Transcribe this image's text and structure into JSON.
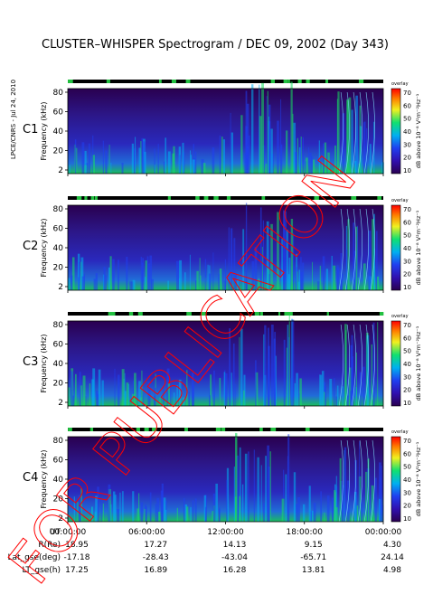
{
  "title": "CLUSTER–WHISPER Spectrogram / DEC 09, 2002 (Day 343)",
  "credit": "LPCE/CNRS - Jul 24, 2010",
  "watermark": "FOR PUBLICATION",
  "colors": {
    "spectrum_low": "#2a0050",
    "spectrum_mid": "#1f3ff0",
    "spectrum_high": "#18e060",
    "bar_mark": "#22c040",
    "c3_label": "#00aa44",
    "watermark": "#ff0000"
  },
  "colorbar": {
    "label": "dB above 10⁻⁸ V²m⁻²Hz⁻¹",
    "small_label": "overlay",
    "ticks": [
      "70",
      "60",
      "50",
      "40",
      "30",
      "20",
      "10"
    ]
  },
  "panels": [
    {
      "label": "C1",
      "ylabel": "Frequency (kHz)",
      "yticks": [
        "80",
        "60",
        "40",
        "20",
        "2"
      ],
      "label_color": "#000000"
    },
    {
      "label": "C2",
      "ylabel": "Frequency (kHz)",
      "yticks": [
        "80",
        "60",
        "40",
        "20",
        "2"
      ],
      "label_color": "#000000"
    },
    {
      "label": "C3",
      "ylabel": "Frequency (kHz)",
      "yticks": [
        "80",
        "60",
        "40",
        "20",
        "2"
      ],
      "label_color": "#00aa44"
    },
    {
      "label": "C4",
      "ylabel": "Frequency (kHz)",
      "yticks": [
        "80",
        "60",
        "40",
        "20",
        "2"
      ],
      "label_color": "#000000"
    }
  ],
  "xaxis": {
    "ticks": [
      "00:00:00",
      "06:00:00",
      "12:00:00",
      "18:00:00",
      "00:00:00"
    ]
  },
  "ephemeris": {
    "rows": [
      {
        "label": "UT",
        "values": [
          "",
          "",
          "",
          "",
          ""
        ]
      },
      {
        "label": "R(Re)",
        "values": [
          "18.95",
          "17.27",
          "14.13",
          "9.15",
          "4.30"
        ]
      },
      {
        "label": "Lat_gse(deg)",
        "values": [
          "-17.18",
          "-28.43",
          "-43.04",
          "-65.71",
          "24.14"
        ]
      },
      {
        "label": "LT_gse(h)",
        "values": [
          "17.25",
          "16.89",
          "16.28",
          "13.81",
          "4.98"
        ]
      }
    ]
  },
  "chart_data": {
    "type": "heatmap",
    "title": "CLUSTER–WHISPER Spectrogram / DEC 09, 2002 (Day 343)",
    "xlabel": "UT",
    "ylabel": "Frequency (kHz)",
    "xlim": [
      "00:00:00",
      "00:00:00"
    ],
    "ylim": [
      2,
      80
    ],
    "zlim": [
      10,
      70
    ],
    "zlabel": "dB above 10⁻⁸ V²m⁻²Hz⁻¹",
    "series": [
      {
        "name": "C1"
      },
      {
        "name": "C2"
      },
      {
        "name": "C3"
      },
      {
        "name": "C4"
      }
    ]
  }
}
